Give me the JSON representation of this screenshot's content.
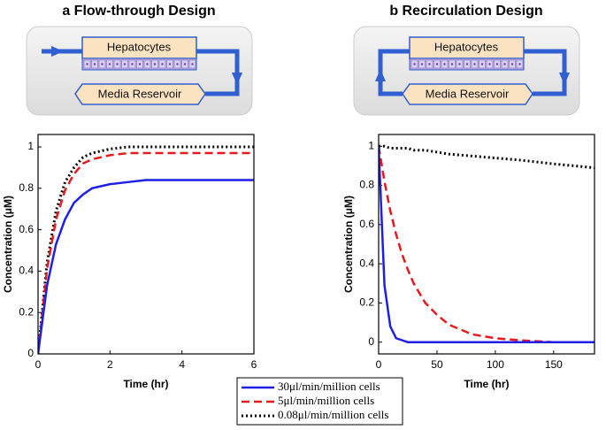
{
  "chart_data": [
    {
      "type": "line",
      "title": "a Flow-through Design",
      "xlabel": "Time (hr)",
      "ylabel": "Concentration (μM)",
      "x": [
        0,
        0.25,
        0.5,
        0.75,
        1,
        1.25,
        1.5,
        2,
        2.5,
        3,
        4,
        5,
        6
      ],
      "series": [
        {
          "name": "30μl/min/million cells",
          "color": "#1f1fe6",
          "style": "solid",
          "values": [
            0,
            0.33,
            0.53,
            0.65,
            0.73,
            0.77,
            0.8,
            0.82,
            0.83,
            0.84,
            0.84,
            0.84,
            0.84
          ]
        },
        {
          "name": "5μl/min/million cells",
          "color": "#e6191e",
          "style": "dashed",
          "values": [
            0,
            0.41,
            0.65,
            0.79,
            0.87,
            0.92,
            0.94,
            0.96,
            0.97,
            0.97,
            0.97,
            0.97,
            0.97
          ]
        },
        {
          "name": "0.08μl/min/million cells",
          "color": "#000000",
          "style": "dotted",
          "values": [
            0,
            0.44,
            0.69,
            0.83,
            0.9,
            0.95,
            0.97,
            0.99,
            1,
            1,
            1,
            1,
            1
          ]
        }
      ],
      "xlim": [
        0,
        6
      ],
      "xticks": [
        0,
        2,
        4,
        6
      ],
      "ylim": [
        0,
        1.06
      ],
      "yticks": [
        0,
        0.2,
        0.4,
        0.6,
        0.8,
        1
      ]
    },
    {
      "type": "line",
      "title": "b Recirculation Design",
      "xlabel": "Time (hr)",
      "ylabel": "Concentration (μM)",
      "x": [
        0,
        5,
        10,
        15,
        20,
        25,
        30,
        40,
        50,
        60,
        80,
        100,
        120,
        150,
        185
      ],
      "series": [
        {
          "color": "#1f1fe6",
          "style": "solid",
          "values": [
            1,
            0.29,
            0.08,
            0.02,
            0.01,
            0,
            0,
            0,
            0,
            0,
            0,
            0,
            0,
            0,
            0
          ]
        },
        {
          "color": "#e6191e",
          "style": "dashed",
          "values": [
            1,
            0.82,
            0.67,
            0.55,
            0.45,
            0.37,
            0.3,
            0.2,
            0.14,
            0.09,
            0.04,
            0.02,
            0.01,
            0,
            0
          ]
        },
        {
          "color": "#000000",
          "style": "dotted",
          "values": [
            1,
            1,
            0.99,
            0.99,
            0.99,
            0.99,
            0.98,
            0.98,
            0.97,
            0.96,
            0.95,
            0.94,
            0.93,
            0.91,
            0.89
          ]
        }
      ],
      "xlim": [
        0,
        185
      ],
      "xticks": [
        0,
        50,
        100,
        150
      ],
      "ylim": [
        -0.06,
        1.06
      ],
      "yticks": [
        0,
        0.2,
        0.4,
        0.6,
        0.8,
        1
      ]
    }
  ],
  "diagrams": [
    {
      "top_label": "Hepatocytes",
      "bottom_label": "Media Reservoir"
    },
    {
      "top_label": "Hepatocytes",
      "bottom_label": "Media Reservoir"
    }
  ]
}
